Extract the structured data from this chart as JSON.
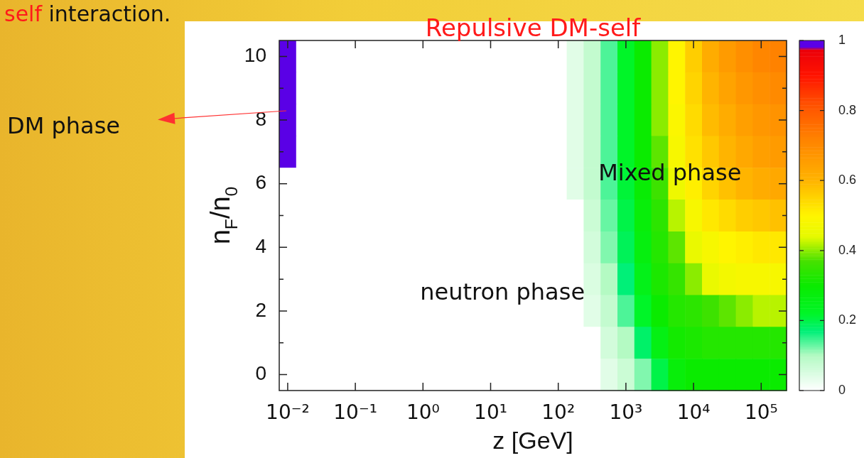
{
  "chart_data": {
    "type": "heatmap",
    "title": "Repulsive DM-self",
    "xlabel": "z [GeV]",
    "ylabel": "n$_{F}$/n$_{0}$",
    "annotations": [
      "self interaction.",
      "DM phase",
      "Mixed phase",
      "neutron phase"
    ],
    "clim": [
      0,
      1
    ],
    "cticks": [
      0,
      0.2,
      0.4,
      0.6,
      0.8,
      1
    ],
    "categories": [
      "10⁻²",
      null,
      null,
      null,
      "10⁻¹",
      null,
      null,
      null,
      "10⁰",
      null,
      null,
      null,
      "10¹",
      null,
      null,
      null,
      "10²",
      null,
      null,
      null,
      "10³",
      null,
      null,
      null,
      "10⁴",
      null,
      null,
      null,
      "10⁵",
      null
    ],
    "y_categories": [
      "10",
      null,
      "8",
      null,
      "6",
      null,
      "4",
      null,
      "2",
      null,
      "0"
    ],
    "cells": [
      [
        1,
        0,
        0,
        0,
        0,
        0,
        0,
        0,
        0,
        0,
        0,
        0,
        0,
        0,
        0,
        0,
        0,
        0.04,
        0.08,
        0.14,
        0.22,
        0.3,
        0.4,
        0.5,
        0.56,
        0.62,
        0.66,
        0.69,
        0.71,
        0.72
      ],
      [
        1,
        0,
        0,
        0,
        0,
        0,
        0,
        0,
        0,
        0,
        0,
        0,
        0,
        0,
        0,
        0,
        0,
        0.04,
        0.08,
        0.14,
        0.22,
        0.3,
        0.4,
        0.5,
        0.55,
        0.6,
        0.64,
        0.67,
        0.69,
        0.7
      ],
      [
        1,
        0,
        0,
        0,
        0,
        0,
        0,
        0,
        0,
        0,
        0,
        0,
        0,
        0,
        0,
        0,
        0,
        0.04,
        0.08,
        0.14,
        0.22,
        0.3,
        0.4,
        0.49,
        0.54,
        0.59,
        0.62,
        0.65,
        0.67,
        0.68
      ],
      [
        1,
        0,
        0,
        0,
        0,
        0,
        0,
        0,
        0,
        0,
        0,
        0,
        0,
        0,
        0,
        0,
        0,
        0.04,
        0.08,
        0.14,
        0.22,
        0.3,
        0.38,
        0.48,
        0.53,
        0.57,
        0.6,
        0.63,
        0.65,
        0.66
      ],
      [
        0,
        0,
        0,
        0,
        0,
        0,
        0,
        0,
        0,
        0,
        0,
        0,
        0,
        0,
        0,
        0,
        0,
        0.04,
        0.08,
        0.14,
        0.21,
        0.29,
        0.36,
        0.46,
        0.51,
        0.55,
        0.58,
        0.6,
        0.62,
        0.63
      ],
      [
        0,
        0,
        0,
        0,
        0,
        0,
        0,
        0,
        0,
        0,
        0,
        0,
        0,
        0,
        0,
        0,
        0,
        0,
        0.07,
        0.13,
        0.2,
        0.28,
        0.34,
        0.42,
        0.48,
        0.52,
        0.54,
        0.56,
        0.57,
        0.58
      ],
      [
        0,
        0,
        0,
        0,
        0,
        0,
        0,
        0,
        0,
        0,
        0,
        0,
        0,
        0,
        0,
        0,
        0,
        0,
        0.06,
        0.12,
        0.19,
        0.27,
        0.33,
        0.38,
        0.45,
        0.48,
        0.5,
        0.51,
        0.52,
        0.52
      ],
      [
        0,
        0,
        0,
        0,
        0,
        0,
        0,
        0,
        0,
        0,
        0,
        0,
        0,
        0,
        0,
        0,
        0,
        0,
        0.05,
        0.1,
        0.17,
        0.25,
        0.32,
        0.35,
        0.4,
        0.45,
        0.47,
        0.48,
        0.48,
        0.48
      ],
      [
        0,
        0,
        0,
        0,
        0,
        0,
        0,
        0,
        0,
        0,
        0,
        0,
        0,
        0,
        0,
        0,
        0,
        0,
        0.04,
        0.08,
        0.14,
        0.22,
        0.3,
        0.33,
        0.34,
        0.36,
        0.38,
        0.4,
        0.42,
        0.42
      ],
      [
        0,
        0,
        0,
        0,
        0,
        0,
        0,
        0,
        0,
        0,
        0,
        0,
        0,
        0,
        0,
        0,
        0,
        0,
        0,
        0.06,
        0.1,
        0.18,
        0.26,
        0.31,
        0.32,
        0.33,
        0.33,
        0.33,
        0.33,
        0.33
      ],
      [
        0,
        0,
        0,
        0,
        0,
        0,
        0,
        0,
        0,
        0,
        0,
        0,
        0,
        0,
        0,
        0,
        0,
        0,
        0,
        0.04,
        0.07,
        0.12,
        0.2,
        0.28,
        0.3,
        0.3,
        0.3,
        0.3,
        0.3,
        0.3
      ]
    ]
  }
}
